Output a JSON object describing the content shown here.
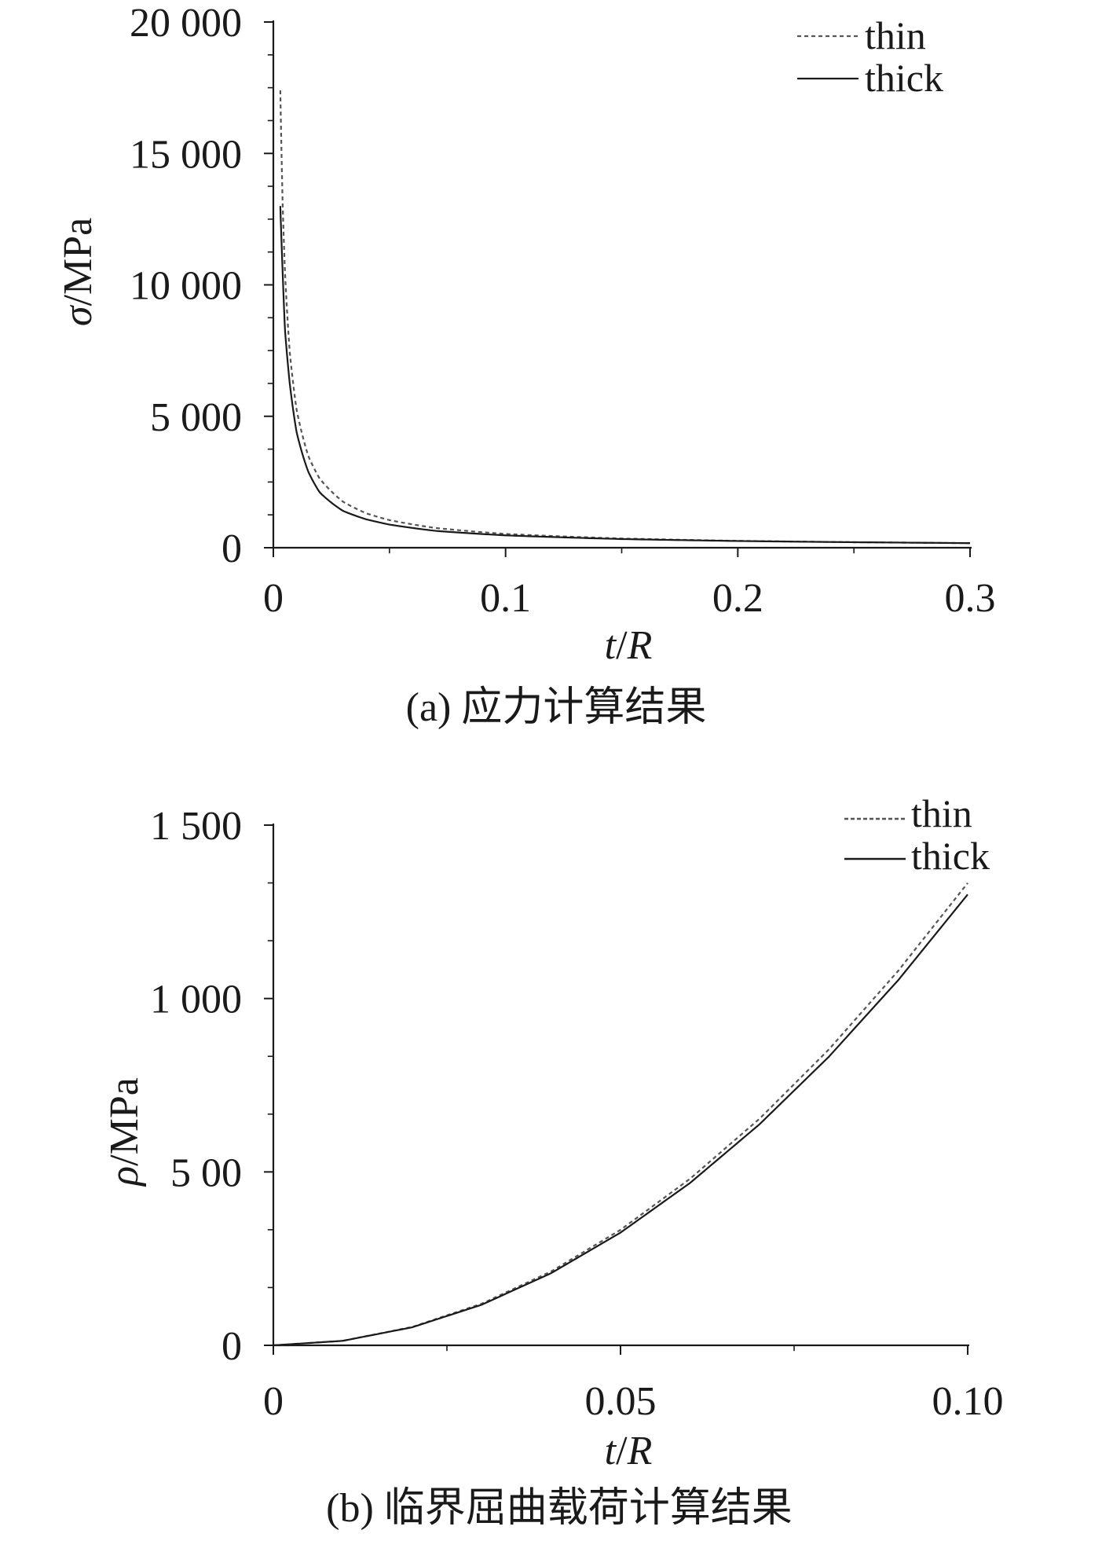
{
  "chart_data": [
    {
      "type": "line",
      "caption": "(a) 应力计算结果",
      "xlabel": "t/R",
      "ylabel": "σ/MPa",
      "xlim": [
        0,
        0.3
      ],
      "ylim": [
        0,
        20000
      ],
      "xticks": [
        0,
        0.1,
        0.2,
        0.3
      ],
      "xtick_labels": [
        "0",
        "0.1",
        "0.2",
        "0.3"
      ],
      "yticks": [
        0,
        5000,
        10000,
        15000,
        20000
      ],
      "ytick_labels": [
        "0",
        "5 000",
        "10 000",
        "15 000",
        "20 000"
      ],
      "grid": false,
      "legend": "top-right",
      "series": [
        {
          "name": "thin",
          "style": "dashed",
          "color": "#555555",
          "x": [
            0.003,
            0.004,
            0.005,
            0.007,
            0.01,
            0.015,
            0.02,
            0.03,
            0.04,
            0.05,
            0.07,
            0.1,
            0.15,
            0.2,
            0.25,
            0.3
          ],
          "y": [
            17400,
            13100,
            10500,
            7500,
            5250,
            3500,
            2620,
            1750,
            1310,
            1050,
            750,
            525,
            350,
            262,
            210,
            175
          ]
        },
        {
          "name": "thick",
          "style": "solid",
          "color": "#1a1a1a",
          "x": [
            0.003,
            0.004,
            0.005,
            0.007,
            0.01,
            0.015,
            0.02,
            0.03,
            0.04,
            0.05,
            0.07,
            0.1,
            0.15,
            0.2,
            0.25,
            0.3
          ],
          "y": [
            13000,
            10500,
            8300,
            6300,
            4400,
            2900,
            2100,
            1400,
            1080,
            880,
            640,
            470,
            330,
            255,
            210,
            175
          ]
        }
      ]
    },
    {
      "type": "line",
      "caption": "(b) 临界屈曲载荷计算结果",
      "xlabel": "t/R",
      "ylabel": "ρ/MPa",
      "xlim": [
        0,
        0.1
      ],
      "ylim": [
        0,
        1500
      ],
      "xticks": [
        0,
        0.05,
        0.1
      ],
      "xtick_labels": [
        "0",
        "0.05",
        "0.10"
      ],
      "yticks": [
        0,
        500,
        1000,
        1500
      ],
      "ytick_labels": [
        "0",
        "5 00",
        "1 000",
        "1 500"
      ],
      "grid": false,
      "legend": "top-right",
      "series": [
        {
          "name": "thin",
          "style": "dashed",
          "color": "#555555",
          "x": [
            0,
            0.01,
            0.02,
            0.03,
            0.04,
            0.05,
            0.06,
            0.07,
            0.08,
            0.09,
            0.1
          ],
          "y": [
            0,
            13,
            53,
            120,
            213,
            333,
            480,
            653,
            853,
            1080,
            1333
          ]
        },
        {
          "name": "thick",
          "style": "solid",
          "color": "#1a1a1a",
          "x": [
            0,
            0.01,
            0.02,
            0.03,
            0.04,
            0.05,
            0.06,
            0.07,
            0.08,
            0.09,
            0.1
          ],
          "y": [
            0,
            13,
            52,
            117,
            208,
            325,
            468,
            637,
            832,
            1053,
            1300
          ]
        }
      ]
    }
  ]
}
